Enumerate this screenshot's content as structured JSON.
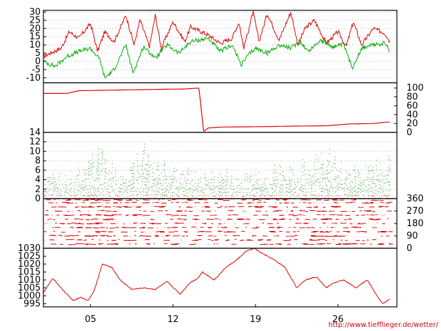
{
  "chart_data": [
    {
      "type": "line",
      "panel": "temperature",
      "ylim": [
        -13,
        31
      ],
      "yticks": [
        "30",
        "25",
        "20",
        "15",
        "10",
        "5",
        "0",
        "-5",
        "-10"
      ],
      "grid": "horizontal dotted",
      "series": [
        {
          "color": "#dd0000",
          "x": [
            1,
            2.5,
            3.2,
            4.0,
            5.0,
            5.6,
            6.2,
            7.0,
            8.0,
            8.7,
            9.2,
            10.0,
            10.5,
            11.0,
            12.0,
            13.0,
            13.5,
            15.0,
            16.0,
            17.0,
            17.6,
            18.0,
            18.8,
            19.3,
            20.0,
            21.0,
            22.0,
            22.6,
            23.2,
            24.0,
            25.0,
            26.0,
            26.7,
            27.3,
            28.0,
            29.0,
            30.0,
            30.4
          ],
          "y": [
            3,
            8,
            18,
            14,
            23,
            6,
            18,
            12,
            28,
            10,
            25,
            9,
            28,
            8,
            24,
            12,
            21,
            16,
            11,
            14,
            24,
            8,
            30,
            12,
            29,
            13,
            30,
            10,
            20,
            25,
            11,
            18,
            9,
            24,
            10,
            20,
            17,
            12
          ]
        },
        {
          "color": "#00aa00",
          "x": [
            1,
            2.0,
            3.0,
            4.0,
            5.0,
            5.8,
            6.2,
            7.0,
            8.0,
            8.6,
            9.5,
            10.5,
            11.5,
            12.5,
            13.5,
            15.0,
            16.0,
            17.0,
            17.8,
            18.4,
            19.0,
            20.0,
            21.0,
            22.0,
            22.8,
            23.5,
            24.5,
            25.5,
            26.5,
            27.2,
            28.0,
            29.0,
            30.0,
            30.4
          ],
          "y": [
            0,
            -3,
            3,
            6,
            8,
            1,
            -10,
            -5,
            10,
            -7,
            9,
            2,
            10,
            5,
            12,
            14,
            6,
            10,
            -2,
            4,
            8,
            5,
            10,
            8,
            12,
            6,
            13,
            9,
            10,
            -4,
            8,
            10,
            11,
            6
          ]
        }
      ]
    },
    {
      "type": "line",
      "panel": "cumulative-counter",
      "ylim": [
        0,
        112
      ],
      "yticks": [
        "100",
        "80",
        "60",
        "40",
        "20",
        "0"
      ],
      "series": [
        {
          "color": "#dd0000",
          "x": [
            1,
            3,
            4,
            6,
            13,
            14.2,
            14.6,
            15,
            16,
            20,
            22,
            25,
            26,
            27,
            29,
            30,
            30.4
          ],
          "y": [
            88,
            88,
            94,
            95,
            98,
            100,
            2,
            10,
            12,
            13,
            14,
            15,
            17,
            19,
            20,
            23,
            23
          ]
        }
      ]
    },
    {
      "type": "scatter",
      "panel": "wind-speed",
      "ylim": [
        0,
        14
      ],
      "yticks": [
        "14",
        "12",
        "10",
        "8",
        "6",
        "4",
        "2",
        "0"
      ],
      "peak_x": [
        2.5,
        3.5,
        5.0,
        5.6,
        6.5,
        7.5,
        9.5,
        10.5,
        11.5,
        12.8,
        15.0,
        16.5,
        18.5,
        20.0,
        21.5,
        23.0,
        24.2,
        25.5,
        26.5,
        28.0,
        29.5,
        30.2
      ],
      "peak_y": [
        7,
        6,
        11,
        13,
        9,
        5,
        12,
        10,
        9,
        7,
        6,
        7,
        6,
        7,
        8,
        9,
        10,
        12,
        9,
        8,
        10,
        12
      ],
      "series": [
        {
          "color": "#228b22",
          "name": ""
        },
        {
          "color": "#dd0000",
          "name": ""
        }
      ]
    },
    {
      "type": "scatter",
      "panel": "wind-direction",
      "ylim": [
        0,
        360
      ],
      "yticks": [
        "360",
        "270",
        "180",
        "90",
        "0"
      ],
      "series": [
        {
          "color": "#dd0000"
        }
      ]
    },
    {
      "type": "line",
      "panel": "pressure",
      "ylim": [
        993,
        1030
      ],
      "yticks": [
        "1030",
        "1025",
        "1020",
        "1015",
        "1010",
        "1005",
        "1000",
        "995"
      ],
      "series": [
        {
          "color": "#dd0000",
          "x": [
            1,
            1.8,
            2.5,
            3.5,
            4.2,
            4.8,
            5.3,
            6.0,
            6.8,
            7.5,
            8.5,
            9.5,
            10.5,
            11.5,
            12.6,
            13.4,
            14.1,
            14.5,
            15.5,
            16.5,
            17.3,
            18.2,
            18.9,
            19.5,
            20.5,
            21.5,
            22.5,
            23.2,
            24.2,
            25.0,
            25.6,
            26.5,
            27.5,
            28.5,
            29.3,
            29.8,
            30.4
          ],
          "y": [
            1002,
            1011,
            1005,
            997,
            999,
            997,
            1003,
            1020,
            1018,
            1010,
            1004,
            1005,
            1004,
            1009,
            1001,
            1008,
            1011,
            1015,
            1010,
            1018,
            1022,
            1028,
            1030,
            1027,
            1023,
            1018,
            1005,
            1010,
            1012,
            1005,
            1008,
            1010,
            1005,
            1010,
            1000,
            995,
            998
          ]
        }
      ]
    }
  ],
  "x_axis": {
    "ticks": [
      "05",
      "12",
      "19",
      "26"
    ],
    "positions": [
      5,
      12,
      19,
      26
    ],
    "range": [
      1,
      31
    ]
  },
  "footer": {
    "credit": "http://www.tiefflieger.de/wetter/"
  }
}
